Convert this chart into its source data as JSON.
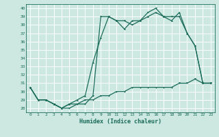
{
  "xlabel": "Humidex (Indice chaleur)",
  "bg_color": "#cce8e0",
  "grid_color": "#b8d8d0",
  "line_color": "#1a6b5a",
  "xlim": [
    -0.5,
    23.5
  ],
  "ylim": [
    27.5,
    40.5
  ],
  "yticks": [
    28,
    29,
    30,
    31,
    32,
    33,
    34,
    35,
    36,
    37,
    38,
    39,
    40
  ],
  "xticks": [
    0,
    1,
    2,
    3,
    4,
    5,
    6,
    7,
    8,
    9,
    10,
    11,
    12,
    13,
    14,
    15,
    16,
    17,
    18,
    19,
    20,
    21,
    22,
    23
  ],
  "series1": [
    30.5,
    29.0,
    29.0,
    28.5,
    28.0,
    28.0,
    28.5,
    28.5,
    29.5,
    39.0,
    39.0,
    38.5,
    38.5,
    38.0,
    38.5,
    39.5,
    40.0,
    39.0,
    39.0,
    39.0,
    37.0,
    35.5,
    31.0,
    31.0
  ],
  "series2": [
    30.5,
    29.0,
    29.0,
    28.5,
    28.0,
    28.5,
    29.0,
    29.5,
    33.5,
    36.5,
    39.0,
    38.5,
    37.5,
    38.5,
    38.5,
    39.0,
    39.5,
    39.0,
    38.5,
    39.5,
    37.0,
    35.5,
    31.0,
    31.0
  ],
  "series3": [
    30.5,
    29.0,
    29.0,
    28.5,
    28.0,
    28.5,
    28.5,
    29.0,
    29.0,
    29.5,
    29.5,
    30.0,
    30.0,
    30.5,
    30.5,
    30.5,
    30.5,
    30.5,
    30.5,
    31.0,
    31.0,
    31.5,
    31.0,
    31.0
  ]
}
